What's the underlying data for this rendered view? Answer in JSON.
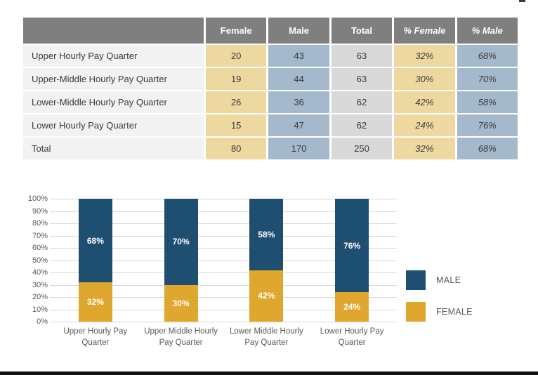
{
  "table": {
    "columns": [
      "",
      "Female",
      "Male",
      "Total",
      "% Female",
      "% Male"
    ],
    "rows": [
      [
        "Upper Hourly Pay Quarter",
        "20",
        "43",
        "63",
        "32%",
        "68%"
      ],
      [
        "Upper-Middle Hourly Pay Quarter",
        "19",
        "44",
        "63",
        "30%",
        "70%"
      ],
      [
        "Lower-Middle Hourly Pay Quarter",
        "26",
        "36",
        "62",
        "42%",
        "58%"
      ],
      [
        "Lower Hourly Pay Quarter",
        "15",
        "47",
        "62",
        "24%",
        "76%"
      ],
      [
        "Total",
        "80",
        "170",
        "250",
        "32%",
        "68%"
      ]
    ]
  },
  "chart_data": {
    "type": "bar",
    "subtype": "stacked-100-percent",
    "categories": [
      "Upper Hourly Pay Quarter",
      "Upper Middle Hourly Pay Quarter",
      "Lower Middle Hourly Pay Quarter",
      "Lower Hourly Pay Quarter"
    ],
    "series": [
      {
        "name": "FEMALE",
        "color": "#E0A72E",
        "values": [
          32,
          30,
          42,
          24
        ]
      },
      {
        "name": "MALE",
        "color": "#1E4E70",
        "values": [
          68,
          70,
          58,
          76
        ]
      }
    ],
    "title": "",
    "xlabel": "",
    "ylabel": "",
    "ylim": [
      0,
      100
    ],
    "ytick_step": 10,
    "ytick_suffix": "%",
    "grid": true,
    "data_labels": true,
    "data_label_suffix": "%",
    "legend_position": "right",
    "legend_order": [
      "MALE",
      "FEMALE"
    ]
  },
  "legend": {
    "items": [
      {
        "label": "MALE",
        "color": "#1E4E70"
      },
      {
        "label": "FEMALE",
        "color": "#E0A72E"
      }
    ]
  },
  "colors": {
    "male": "#1E4E70",
    "female": "#E0A72E",
    "table_header": "#7F7F7F",
    "female_cell": "#EDD9A0",
    "male_cell": "#A4B9CC",
    "total_cell": "#D9D9D9",
    "row_label_cell": "#F2F2F2",
    "gridline": "#D9D9D9",
    "axis_text": "#595959",
    "bottom_bar": "#111111"
  }
}
